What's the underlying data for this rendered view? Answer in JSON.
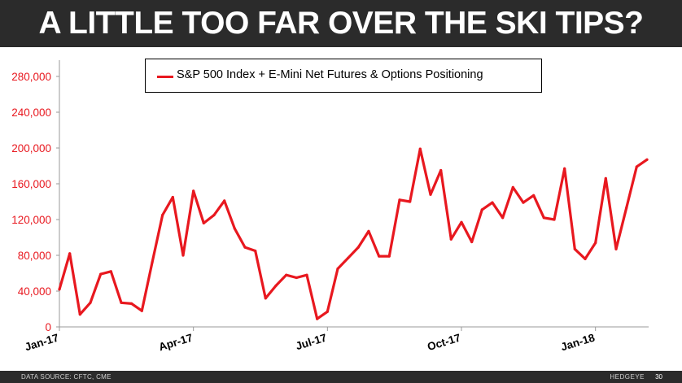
{
  "title": "A LITTLE TOO FAR OVER THE SKI TIPS?",
  "footer": {
    "source": "DATA SOURCE: CFTC, CME",
    "brand": "HEDGEYE",
    "page": "30"
  },
  "colors": {
    "series": "#e8181f",
    "axis_text": "#e8181f",
    "bar": "#2b2b2b"
  },
  "chart_data": {
    "type": "line",
    "title": "A LITTLE TOO FAR OVER THE SKI TIPS?",
    "xlabel": "",
    "ylabel": "",
    "ylim": [
      0,
      290000
    ],
    "yticks": [
      0,
      40000,
      80000,
      120000,
      160000,
      200000,
      240000,
      280000
    ],
    "ytick_labels": [
      "0",
      "40,000",
      "80,000",
      "120,000",
      "160,000",
      "200,000",
      "240,000",
      "280,000"
    ],
    "x_ticks": [
      {
        "label": "Jan-17",
        "week": 0
      },
      {
        "label": "Apr-17",
        "week": 13
      },
      {
        "label": "Jul-17",
        "week": 26
      },
      {
        "label": "Oct-17",
        "week": 39
      },
      {
        "label": "Jan-18",
        "week": 52
      }
    ],
    "legend": "top-center",
    "grid": false,
    "series": [
      {
        "name": "S&P 500 Index + E-Mini Net Futures & Options Positioning",
        "values": [
          42000,
          82000,
          14000,
          27000,
          59000,
          62000,
          27000,
          26000,
          18000,
          72000,
          125000,
          145000,
          80000,
          152000,
          116000,
          125000,
          141000,
          110000,
          89000,
          85000,
          32000,
          46000,
          58000,
          55000,
          58000,
          9000,
          17000,
          65000,
          77000,
          89000,
          107000,
          79000,
          79000,
          142000,
          140000,
          199000,
          148000,
          175000,
          98000,
          117000,
          95000,
          131000,
          139000,
          122000,
          156000,
          139000,
          147000,
          122000,
          120000,
          177000,
          87000,
          76000,
          94000,
          166000,
          87000,
          133000,
          179000,
          187000
        ]
      }
    ]
  }
}
